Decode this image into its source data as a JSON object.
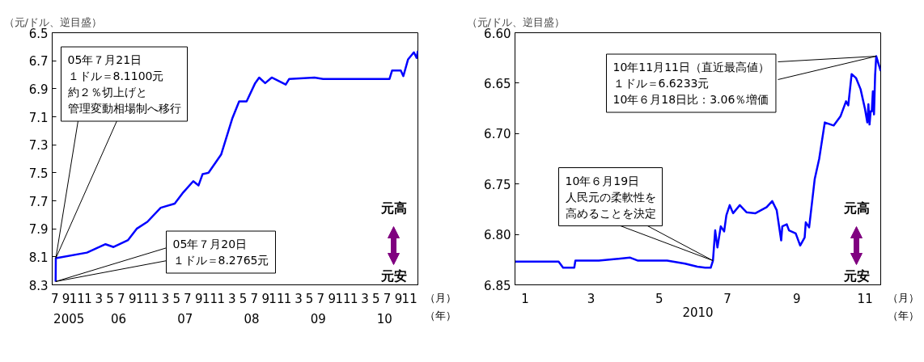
{
  "chart_data": [
    {
      "type": "line",
      "ylabel": "（元/ドル、逆目盛）",
      "xlabel": "（月）",
      "x2label": "（年）",
      "grid": false,
      "x": [
        "2005-07-20",
        "2005-07-21",
        "2005-07-22",
        "2006-01-08",
        "2006-04-20",
        "2006-06-03",
        "2006-08-22",
        "2006-10-08",
        "2006-12-06",
        "2007-02-17",
        "2007-05-05",
        "2007-06-21",
        "2007-08-15",
        "2007-09-13",
        "2007-10-05",
        "2007-11-07",
        "2008-01-15",
        "2008-03-17",
        "2008-04-23",
        "2008-06-03",
        "2008-07-20",
        "2008-08-11",
        "2008-09-13",
        "2008-10-19",
        "2009-01-04",
        "2009-01-23",
        "2009-06-11",
        "2009-07-28",
        "2010-07-28",
        "2010-08-11",
        "2010-09-28",
        "2010-10-12",
        "2010-11-07",
        "2010-12-09",
        "2010-12-24",
        "2010-12-31"
      ],
      "series": [
        {
          "color": "#0000ff",
          "values": [
            8.2765,
            8.11,
            8.11,
            8.07,
            8.01,
            8.03,
            7.98,
            7.9,
            7.85,
            7.75,
            7.72,
            7.64,
            7.56,
            7.59,
            7.51,
            7.5,
            7.37,
            7.11,
            6.99,
            6.99,
            6.86,
            6.82,
            6.86,
            6.82,
            6.87,
            6.83,
            6.82,
            6.83,
            6.83,
            6.77,
            6.77,
            6.81,
            6.69,
            6.64,
            6.68,
            6.63
          ]
        }
      ],
      "xlim": [
        "2005-07-01",
        "2010-12-31"
      ],
      "ylim": [
        8.3,
        6.5
      ],
      "yticks": [
        6.5,
        6.7,
        6.9,
        7.1,
        7.3,
        7.5,
        7.7,
        7.9,
        8.1,
        8.3
      ],
      "xticks": [
        {
          "value": "2005-07-15",
          "label": "7"
        },
        {
          "value": "2005-09-15",
          "label": "9"
        },
        {
          "value": "2005-11-15",
          "label": "11"
        },
        {
          "value": "2006-01-15",
          "label": "1"
        },
        {
          "value": "2006-03-15",
          "label": "3"
        },
        {
          "value": "2006-05-15",
          "label": "5"
        },
        {
          "value": "2006-07-15",
          "label": "7"
        },
        {
          "value": "2006-09-15",
          "label": "9"
        },
        {
          "value": "2006-11-15",
          "label": "11"
        },
        {
          "value": "2007-01-15",
          "label": "1"
        },
        {
          "value": "2007-03-15",
          "label": "3"
        },
        {
          "value": "2007-05-15",
          "label": "5"
        },
        {
          "value": "2007-07-15",
          "label": "7"
        },
        {
          "value": "2007-09-15",
          "label": "9"
        },
        {
          "value": "2007-11-15",
          "label": "11"
        },
        {
          "value": "2008-01-15",
          "label": "1"
        },
        {
          "value": "2008-03-15",
          "label": "3"
        },
        {
          "value": "2008-05-15",
          "label": "5"
        },
        {
          "value": "2008-07-15",
          "label": "7"
        },
        {
          "value": "2008-09-15",
          "label": "9"
        },
        {
          "value": "2008-11-15",
          "label": "11"
        },
        {
          "value": "2009-01-15",
          "label": "1"
        },
        {
          "value": "2009-03-15",
          "label": "3"
        },
        {
          "value": "2009-05-15",
          "label": "5"
        },
        {
          "value": "2009-07-15",
          "label": "7"
        },
        {
          "value": "2009-09-15",
          "label": "9"
        },
        {
          "value": "2009-11-15",
          "label": "11"
        },
        {
          "value": "2010-01-15",
          "label": "1"
        },
        {
          "value": "2010-03-15",
          "label": "3"
        },
        {
          "value": "2010-05-15",
          "label": "5"
        },
        {
          "value": "2010-07-15",
          "label": "7"
        },
        {
          "value": "2010-09-15",
          "label": "9"
        },
        {
          "value": "2010-11-15",
          "label": "11"
        }
      ],
      "x2lim": [
        "2005-07-01",
        "2010-12-31"
      ],
      "x2ticks": [
        {
          "value": "2005-10-01",
          "label": "2005"
        },
        {
          "value": "2006-07-01",
          "label": "06"
        },
        {
          "value": "2007-07-01",
          "label": "07"
        },
        {
          "value": "2008-07-01",
          "label": "08"
        },
        {
          "value": "2009-07-01",
          "label": "09"
        },
        {
          "value": "2010-07-01",
          "label": "10"
        }
      ],
      "annotations": [
        {
          "text": "05年７月21日１ドル＝8.1100元約２％切上げと管理変動相場制へ移行",
          "x": "2005-07-21",
          "y": 8.11
        },
        {
          "text": "05年７月20日１ドル＝8.2765元",
          "x": "2005-07-20",
          "y": 8.2765
        },
        "元高",
        "元安"
      ]
    },
    {
      "type": "line",
      "ylabel": "（元/ドル、逆目盛）",
      "xlabel": "（月）",
      "x2label": "（年）",
      "grid": false,
      "x": [
        "2009-12-23",
        "2010-01-31",
        "2010-02-04",
        "2010-02-14",
        "2010-02-15",
        "2010-03-08",
        "2010-04-05",
        "2010-04-12",
        "2010-05-08",
        "2010-05-24",
        "2010-06-04",
        "2010-06-11",
        "2010-06-16",
        "2010-06-18",
        "2010-06-20",
        "2010-06-22",
        "2010-06-25",
        "2010-06-28",
        "2010-06-30",
        "2010-07-03",
        "2010-07-06",
        "2010-07-12",
        "2010-07-18",
        "2010-07-26",
        "2010-08-05",
        "2010-08-10",
        "2010-08-14",
        "2010-08-18",
        "2010-08-19",
        "2010-08-23",
        "2010-08-25",
        "2010-08-31",
        "2010-09-04",
        "2010-09-08",
        "2010-09-09",
        "2010-09-12",
        "2010-09-17",
        "2010-09-21",
        "2010-09-26",
        "2010-10-04",
        "2010-10-10",
        "2010-10-15",
        "2010-10-17",
        "2010-10-20",
        "2010-10-24",
        "2010-10-28",
        "2010-11-01",
        "2010-11-03",
        "2010-11-04",
        "2010-11-05",
        "2010-11-06",
        "2010-11-07",
        "2010-11-08",
        "2010-11-09",
        "2010-11-10",
        "2010-11-11",
        "2010-11-15"
      ],
      "series": [
        {
          "color": "#0000ff",
          "values": [
            6.827,
            6.827,
            6.833,
            6.833,
            6.826,
            6.826,
            6.823,
            6.826,
            6.826,
            6.829,
            6.832,
            6.833,
            6.833,
            6.826,
            6.796,
            6.813,
            6.792,
            6.797,
            6.781,
            6.771,
            6.779,
            6.771,
            6.778,
            6.779,
            6.773,
            6.767,
            6.776,
            6.806,
            6.792,
            6.79,
            6.796,
            6.799,
            6.811,
            6.803,
            6.788,
            6.793,
            6.745,
            6.725,
            6.689,
            6.692,
            6.683,
            6.668,
            6.672,
            6.641,
            6.645,
            6.656,
            6.676,
            6.689,
            6.671,
            6.691,
            6.678,
            6.678,
            6.658,
            6.681,
            6.642,
            6.6233,
            6.638
          ]
        }
      ],
      "xlim": [
        "2009-12-23",
        "2010-11-15"
      ],
      "ylim": [
        6.85,
        6.6
      ],
      "yticks": [
        {
          "value": 6.6,
          "label": "6.60"
        },
        {
          "value": 6.65,
          "label": "6.65"
        },
        {
          "value": 6.7,
          "label": "6.70"
        },
        {
          "value": 6.75,
          "label": "6.75"
        },
        {
          "value": 6.8,
          "label": "6.80"
        },
        {
          "value": 6.85,
          "label": "6.85"
        }
      ],
      "xticks": [
        {
          "value": "2010-01-01",
          "label": "1"
        },
        {
          "value": "2010-03-01",
          "label": "3"
        },
        {
          "value": "2010-05-01",
          "label": "5"
        },
        {
          "value": "2010-07-01",
          "label": "7"
        },
        {
          "value": "2010-09-01",
          "label": "9"
        },
        {
          "value": "2010-11-01",
          "label": "11"
        }
      ],
      "annotations": [
        {
          "text": "10年11月11日（直近最高値）１ドル＝6.6233元10年６月18日比：3.06％増価",
          "x": "2010-11-11",
          "y": 6.6233
        },
        {
          "text": "10年６月19日人民元の柔軟性を高めることを決定",
          "x": "2010-06-18",
          "y": 6.826
        },
        "元高",
        "元安",
        "2010"
      ]
    }
  ]
}
